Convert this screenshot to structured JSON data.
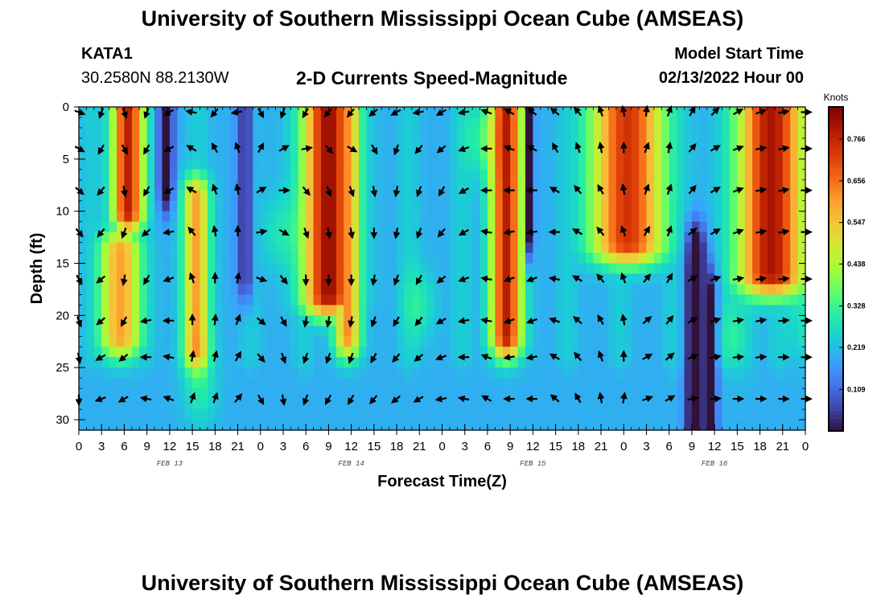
{
  "header": {
    "title": "University of Southern Mississippi Ocean Cube (AMSEAS)",
    "station": "KATA1",
    "coords": "30.2580N  88.2130W",
    "subtitle": "2-D Currents Speed-Magnitude",
    "start_label": "Model Start Time",
    "start_value": "02/13/2022 Hour 00"
  },
  "footer": {
    "title": "University of Southern Mississippi Ocean Cube (AMSEAS)"
  },
  "colors": {
    "arrow": "#000000",
    "scale": [
      "#30123b",
      "#4145ab",
      "#4675ed",
      "#39a2fc",
      "#1bcfd4",
      "#24eca6",
      "#61fc6c",
      "#a4fc3b",
      "#d1e834",
      "#f3c63a",
      "#fe9b2d",
      "#f36315",
      "#d93806",
      "#b11901",
      "#7a0402"
    ]
  },
  "chart_data": {
    "type": "heatmap",
    "title": "2-D Currents Speed-Magnitude",
    "xlabel": "Forecast Time(Z)",
    "ylabel": "Depth (ft)",
    "xlim": [
      0,
      96
    ],
    "ylim": [
      31,
      0
    ],
    "x_tick_values": [
      0,
      3,
      6,
      9,
      12,
      15,
      18,
      21,
      24,
      27,
      30,
      33,
      36,
      39,
      42,
      45,
      48,
      51,
      54,
      57,
      60,
      63,
      66,
      69,
      72,
      75,
      78,
      81,
      84,
      87,
      90,
      93,
      96
    ],
    "x_tick_labels": [
      "0",
      "3",
      "6",
      "9",
      "12",
      "15",
      "18",
      "21",
      "0",
      "3",
      "6",
      "9",
      "12",
      "15",
      "18",
      "21",
      "0",
      "3",
      "6",
      "9",
      "12",
      "15",
      "18",
      "21",
      "0",
      "3",
      "6",
      "9",
      "12",
      "15",
      "18",
      "21",
      "0"
    ],
    "y_ticks": [
      0,
      5,
      10,
      15,
      20,
      25,
      30
    ],
    "y_tick_labels": [
      "0",
      "5",
      "10",
      "15",
      "20",
      "25",
      "30"
    ],
    "day_labels": [
      {
        "label": "FEB 13",
        "x": 12
      },
      {
        "label": "FEB 14",
        "x": 36
      },
      {
        "label": "FEB 15",
        "x": 60
      },
      {
        "label": "FEB 16",
        "x": 84
      }
    ],
    "colorbar": {
      "unit": "Knots",
      "min": 0.0,
      "max": 0.85,
      "ticks": [
        "0.109",
        "0.219",
        "0.328",
        "0.438",
        "0.547",
        "0.656",
        "0.766"
      ]
    },
    "hot_bands": [
      {
        "t": 6.5,
        "width": 2.6,
        "bottom": 10,
        "peak": 0.78
      },
      {
        "t": 15.5,
        "width": 2.2,
        "bottom": 23,
        "top": 9,
        "peak": 0.6
      },
      {
        "t": 5.5,
        "width": 3.5,
        "bottom": 22,
        "top": 14,
        "peak": 0.6
      },
      {
        "t": 33,
        "width": 4.2,
        "bottom": 18,
        "peak": 0.82
      },
      {
        "t": 35.5,
        "width": 2.2,
        "bottom": 22,
        "peak": 0.62
      },
      {
        "t": 56.5,
        "width": 2.6,
        "bottom": 22,
        "peak": 0.78
      },
      {
        "t": 72.5,
        "width": 6.0,
        "bottom": 13,
        "peak": 0.74
      },
      {
        "t": 91.5,
        "width": 5.5,
        "bottom": 16,
        "peak": 0.8
      }
    ],
    "cool_bands": [
      {
        "t": 11.5,
        "width": 1.3,
        "bottom": 7,
        "drop": 0.3
      },
      {
        "t": 22,
        "width": 1.5,
        "bottom": 16,
        "drop": 0.2
      },
      {
        "t": 59.8,
        "width": 0.6,
        "bottom": 12,
        "drop": 0.45
      },
      {
        "t": 81.5,
        "width": 1.8,
        "top": 14,
        "drop": 0.3
      },
      {
        "t": 83.8,
        "width": 0.8,
        "top": 18,
        "drop": 0.25
      }
    ],
    "arrow_times": [
      0,
      3,
      6,
      9,
      12,
      15,
      18,
      21,
      24,
      27,
      30,
      33,
      36,
      39,
      42,
      45,
      48,
      51,
      54,
      57,
      60,
      63,
      66,
      69,
      72,
      75,
      78,
      81,
      84,
      87,
      90,
      93,
      96
    ],
    "arrow_depths": [
      0.5,
      4,
      8,
      12,
      16.5,
      20.5,
      24,
      28
    ],
    "arrow_directions_deg": [
      [
        110,
        200,
        160,
        200,
        240,
        280,
        220,
        260,
        150,
        200,
        210,
        220,
        220,
        230,
        240,
        260,
        240,
        260,
        290,
        300,
        310,
        310,
        320,
        340,
        350,
        5,
        20,
        30,
        45,
        60,
        70,
        80,
        90
      ],
      [
        120,
        210,
        150,
        210,
        240,
        300,
        330,
        340,
        30,
        60,
        80,
        140,
        120,
        150,
        200,
        220,
        230,
        250,
        270,
        290,
        300,
        330,
        340,
        350,
        0,
        20,
        10,
        40,
        60,
        70,
        80,
        80,
        90
      ],
      [
        130,
        220,
        170,
        210,
        240,
        300,
        340,
        350,
        60,
        90,
        140,
        160,
        160,
        170,
        190,
        200,
        210,
        240,
        270,
        270,
        270,
        300,
        320,
        330,
        350,
        20,
        20,
        40,
        60,
        70,
        80,
        80,
        90
      ],
      [
        140,
        220,
        200,
        230,
        260,
        320,
        350,
        0,
        80,
        120,
        160,
        170,
        170,
        180,
        190,
        200,
        220,
        240,
        280,
        260,
        260,
        270,
        300,
        320,
        340,
        30,
        20,
        50,
        60,
        70,
        80,
        80,
        90
      ],
      [
        150,
        230,
        190,
        210,
        250,
        340,
        0,
        10,
        110,
        140,
        180,
        180,
        180,
        190,
        200,
        210,
        230,
        250,
        280,
        250,
        250,
        280,
        300,
        320,
        340,
        40,
        30,
        60,
        70,
        80,
        80,
        85,
        90
      ],
      [
        160,
        230,
        210,
        260,
        270,
        0,
        5,
        20,
        130,
        150,
        190,
        190,
        190,
        200,
        210,
        220,
        240,
        260,
        280,
        250,
        250,
        290,
        310,
        330,
        350,
        50,
        40,
        60,
        70,
        80,
        80,
        85,
        90
      ],
      [
        170,
        240,
        230,
        270,
        280,
        10,
        15,
        30,
        140,
        160,
        200,
        200,
        200,
        210,
        220,
        230,
        250,
        270,
        290,
        260,
        260,
        300,
        320,
        340,
        0,
        60,
        50,
        70,
        80,
        85,
        85,
        90,
        90
      ],
      [
        180,
        250,
        240,
        280,
        290,
        20,
        20,
        40,
        150,
        170,
        200,
        210,
        210,
        220,
        230,
        240,
        260,
        280,
        300,
        270,
        270,
        310,
        330,
        350,
        10,
        70,
        60,
        80,
        85,
        90,
        90,
        90,
        90
      ]
    ]
  }
}
